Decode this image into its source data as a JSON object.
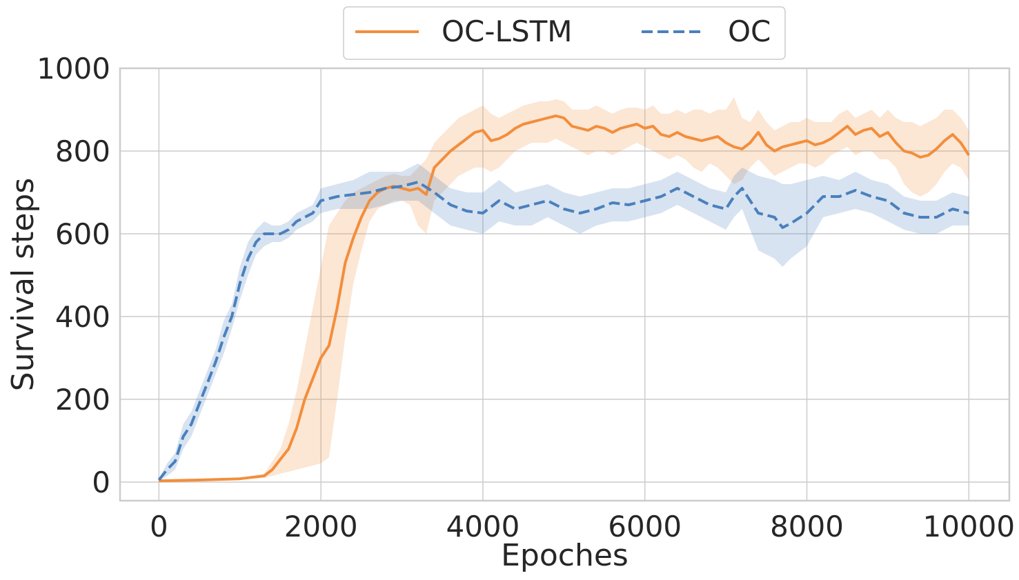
{
  "chart_data": {
    "type": "line",
    "title": "",
    "xlabel": "Epoches",
    "ylabel": "Survival steps",
    "xlim": [
      -480,
      10500
    ],
    "ylim": [
      -45,
      1000
    ],
    "xticks": [
      0,
      2000,
      4000,
      6000,
      8000,
      10000
    ],
    "xtick_labels": [
      "0",
      "2000",
      "4000",
      "6000",
      "8000",
      "10000"
    ],
    "yticks": [
      0,
      200,
      400,
      600,
      800,
      1000
    ],
    "ytick_labels": [
      "0",
      "200",
      "400",
      "600",
      "800",
      "1000"
    ],
    "grid": true,
    "legend": {
      "position": "top-center",
      "columns": 2
    },
    "series": [
      {
        "name": "OC-LSTM",
        "color": "#f28e3c",
        "line_style": "solid",
        "x": [
          0,
          500,
          1000,
          1300,
          1400,
          1500,
          1600,
          1700,
          1800,
          1900,
          2000,
          2100,
          2200,
          2300,
          2400,
          2500,
          2600,
          2700,
          2800,
          2900,
          3000,
          3100,
          3200,
          3300,
          3400,
          3500,
          3600,
          3700,
          3800,
          3900,
          4000,
          4100,
          4200,
          4300,
          4400,
          4500,
          4600,
          4700,
          4800,
          4900,
          5000,
          5100,
          5200,
          5300,
          5400,
          5500,
          5600,
          5700,
          5800,
          5900,
          6000,
          6100,
          6200,
          6300,
          6400,
          6500,
          6600,
          6700,
          6800,
          6900,
          7000,
          7100,
          7200,
          7300,
          7400,
          7500,
          7600,
          7700,
          7800,
          7900,
          8000,
          8100,
          8200,
          8300,
          8400,
          8500,
          8600,
          8700,
          8800,
          8900,
          9000,
          9100,
          9200,
          9300,
          9400,
          9500,
          9600,
          9700,
          9800,
          9900,
          10000
        ],
        "y": [
          3,
          5,
          8,
          15,
          30,
          55,
          80,
          130,
          200,
          250,
          300,
          330,
          420,
          530,
          590,
          640,
          680,
          700,
          710,
          715,
          710,
          705,
          710,
          695,
          760,
          780,
          800,
          815,
          830,
          845,
          850,
          825,
          830,
          840,
          855,
          865,
          870,
          875,
          880,
          885,
          880,
          860,
          855,
          850,
          860,
          855,
          845,
          855,
          860,
          865,
          855,
          860,
          840,
          835,
          845,
          835,
          830,
          825,
          830,
          835,
          820,
          810,
          805,
          820,
          845,
          815,
          800,
          810,
          815,
          820,
          825,
          815,
          820,
          830,
          845,
          860,
          840,
          850,
          855,
          835,
          845,
          820,
          800,
          795,
          785,
          790,
          805,
          825,
          840,
          820,
          790
        ],
        "ci_low": [
          2,
          4,
          6,
          10,
          15,
          20,
          25,
          30,
          35,
          40,
          45,
          60,
          200,
          350,
          480,
          560,
          630,
          660,
          670,
          680,
          680,
          670,
          620,
          600,
          680,
          700,
          720,
          740,
          750,
          760,
          760,
          750,
          760,
          780,
          800,
          810,
          820,
          820,
          820,
          830,
          820,
          810,
          800,
          790,
          800,
          800,
          790,
          800,
          810,
          820,
          810,
          800,
          790,
          780,
          790,
          780,
          760,
          750,
          770,
          760,
          740,
          720,
          730,
          760,
          780,
          760,
          740,
          750,
          760,
          770,
          770,
          760,
          770,
          790,
          800,
          810,
          790,
          800,
          800,
          780,
          780,
          760,
          720,
          700,
          690,
          700,
          720,
          750,
          770,
          760,
          730
        ],
        "ci_high": [
          4,
          6,
          10,
          20,
          50,
          80,
          140,
          220,
          320,
          420,
          520,
          620,
          650,
          680,
          700,
          710,
          720,
          730,
          740,
          745,
          740,
          740,
          760,
          780,
          820,
          840,
          860,
          880,
          890,
          900,
          910,
          890,
          880,
          890,
          900,
          910,
          915,
          920,
          920,
          925,
          920,
          900,
          900,
          900,
          910,
          900,
          890,
          900,
          905,
          905,
          900,
          910,
          890,
          890,
          900,
          890,
          900,
          900,
          890,
          900,
          900,
          930,
          880,
          870,
          900,
          870,
          850,
          860,
          870,
          870,
          880,
          870,
          870,
          870,
          890,
          900,
          880,
          890,
          900,
          880,
          900,
          880,
          870,
          870,
          860,
          870,
          880,
          900,
          900,
          880,
          850
        ]
      },
      {
        "name": "OC",
        "color": "#4a80bd",
        "line_style": "dashed",
        "x": [
          0,
          100,
          200,
          300,
          400,
          500,
          600,
          700,
          800,
          900,
          1000,
          1100,
          1200,
          1300,
          1400,
          1500,
          1600,
          1700,
          1800,
          1900,
          2000,
          2200,
          2400,
          2600,
          2800,
          3000,
          3200,
          3400,
          3600,
          3800,
          4000,
          4200,
          4400,
          4600,
          4800,
          5000,
          5200,
          5400,
          5600,
          5800,
          6000,
          6200,
          6400,
          6600,
          6800,
          7000,
          7100,
          7200,
          7400,
          7600,
          7700,
          7800,
          8000,
          8200,
          8400,
          8600,
          8800,
          9000,
          9200,
          9400,
          9600,
          9800,
          10000
        ],
        "y": [
          5,
          30,
          50,
          110,
          140,
          190,
          240,
          290,
          350,
          400,
          480,
          540,
          580,
          600,
          600,
          600,
          610,
          630,
          640,
          650,
          680,
          690,
          695,
          700,
          710,
          715,
          725,
          700,
          670,
          655,
          650,
          680,
          660,
          670,
          680,
          660,
          650,
          660,
          675,
          670,
          680,
          690,
          710,
          690,
          670,
          660,
          690,
          710,
          650,
          640,
          615,
          625,
          650,
          690,
          690,
          705,
          690,
          680,
          650,
          640,
          640,
          660,
          650
        ],
        "ci_low": [
          2,
          15,
          30,
          80,
          110,
          160,
          210,
          260,
          310,
          370,
          440,
          500,
          550,
          570,
          580,
          580,
          590,
          610,
          620,
          630,
          650,
          660,
          660,
          660,
          670,
          680,
          680,
          650,
          620,
          610,
          600,
          630,
          620,
          620,
          640,
          620,
          600,
          620,
          630,
          630,
          640,
          650,
          670,
          650,
          630,
          610,
          640,
          660,
          560,
          540,
          520,
          540,
          570,
          640,
          650,
          660,
          650,
          630,
          610,
          600,
          600,
          620,
          620
        ],
        "ci_high": [
          8,
          45,
          70,
          140,
          170,
          220,
          270,
          320,
          390,
          430,
          520,
          580,
          610,
          630,
          620,
          620,
          630,
          650,
          660,
          670,
          710,
          720,
          730,
          750,
          750,
          750,
          770,
          740,
          710,
          700,
          700,
          730,
          700,
          710,
          720,
          700,
          690,
          700,
          710,
          710,
          720,
          730,
          750,
          730,
          710,
          700,
          740,
          760,
          740,
          730,
          720,
          720,
          730,
          740,
          730,
          750,
          730,
          720,
          690,
          680,
          680,
          700,
          690
        ]
      }
    ]
  }
}
